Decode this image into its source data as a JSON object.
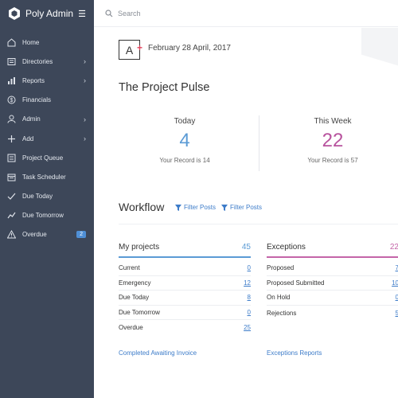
{
  "app": {
    "name": "Poly Admin"
  },
  "search": {
    "placeholder": "Search"
  },
  "sidebar": {
    "items": [
      {
        "label": "Home",
        "icon": "home-icon",
        "chevron": false
      },
      {
        "label": "Directories",
        "icon": "directory-icon",
        "chevron": true
      },
      {
        "label": "Reports",
        "icon": "chart-icon",
        "chevron": true
      },
      {
        "label": "Financials",
        "icon": "dollar-icon",
        "chevron": false
      },
      {
        "label": "Admin",
        "icon": "user-icon",
        "chevron": true
      },
      {
        "label": "Add",
        "icon": "plus-icon",
        "chevron": true
      },
      {
        "label": "Project Queue",
        "icon": "list-icon",
        "chevron": false
      },
      {
        "label": "Task Scheduler",
        "icon": "calendar-icon",
        "chevron": false
      },
      {
        "label": "Due Today",
        "icon": "check-icon",
        "chevron": false
      },
      {
        "label": "Due Tomorrow",
        "icon": "trend-icon",
        "chevron": false
      },
      {
        "label": "Overdue",
        "icon": "warning-icon",
        "chevron": false,
        "badge": "2"
      }
    ]
  },
  "header": {
    "grade": "A",
    "date": "February 28 April, 2017"
  },
  "pulse": {
    "title": "The Project Pulse",
    "today": {
      "label": "Today",
      "value": "4",
      "note": "Your Record is 14",
      "color": "#5b9bd5"
    },
    "week": {
      "label": "This Week",
      "value": "22",
      "note": "Your Record is 57",
      "color": "#b8539e"
    }
  },
  "workflow": {
    "title": "Workflow",
    "filters": [
      "Filter Posts",
      "Filter Posts"
    ]
  },
  "my_projects": {
    "title": "My projects",
    "count": "45",
    "accent": "#5b9bd5",
    "rows": [
      {
        "label": "Current",
        "value": "0"
      },
      {
        "label": "Emergency",
        "value": "12"
      },
      {
        "label": "Due Today",
        "value": "8"
      },
      {
        "label": "Due Tomorrow",
        "value": "0"
      },
      {
        "label": "Overdue",
        "value": "25"
      }
    ],
    "link": "Completed Awaiting Invoice"
  },
  "exceptions": {
    "title": "Exceptions",
    "count": "22",
    "accent": "#c465a8",
    "rows": [
      {
        "label": "Proposed",
        "value": "7"
      },
      {
        "label": "Proposed Submitted",
        "value": "10"
      },
      {
        "label": "On Hold",
        "value": "0"
      },
      {
        "label": "Rejections",
        "value": "5"
      }
    ],
    "link": "Exceptions Reports"
  }
}
